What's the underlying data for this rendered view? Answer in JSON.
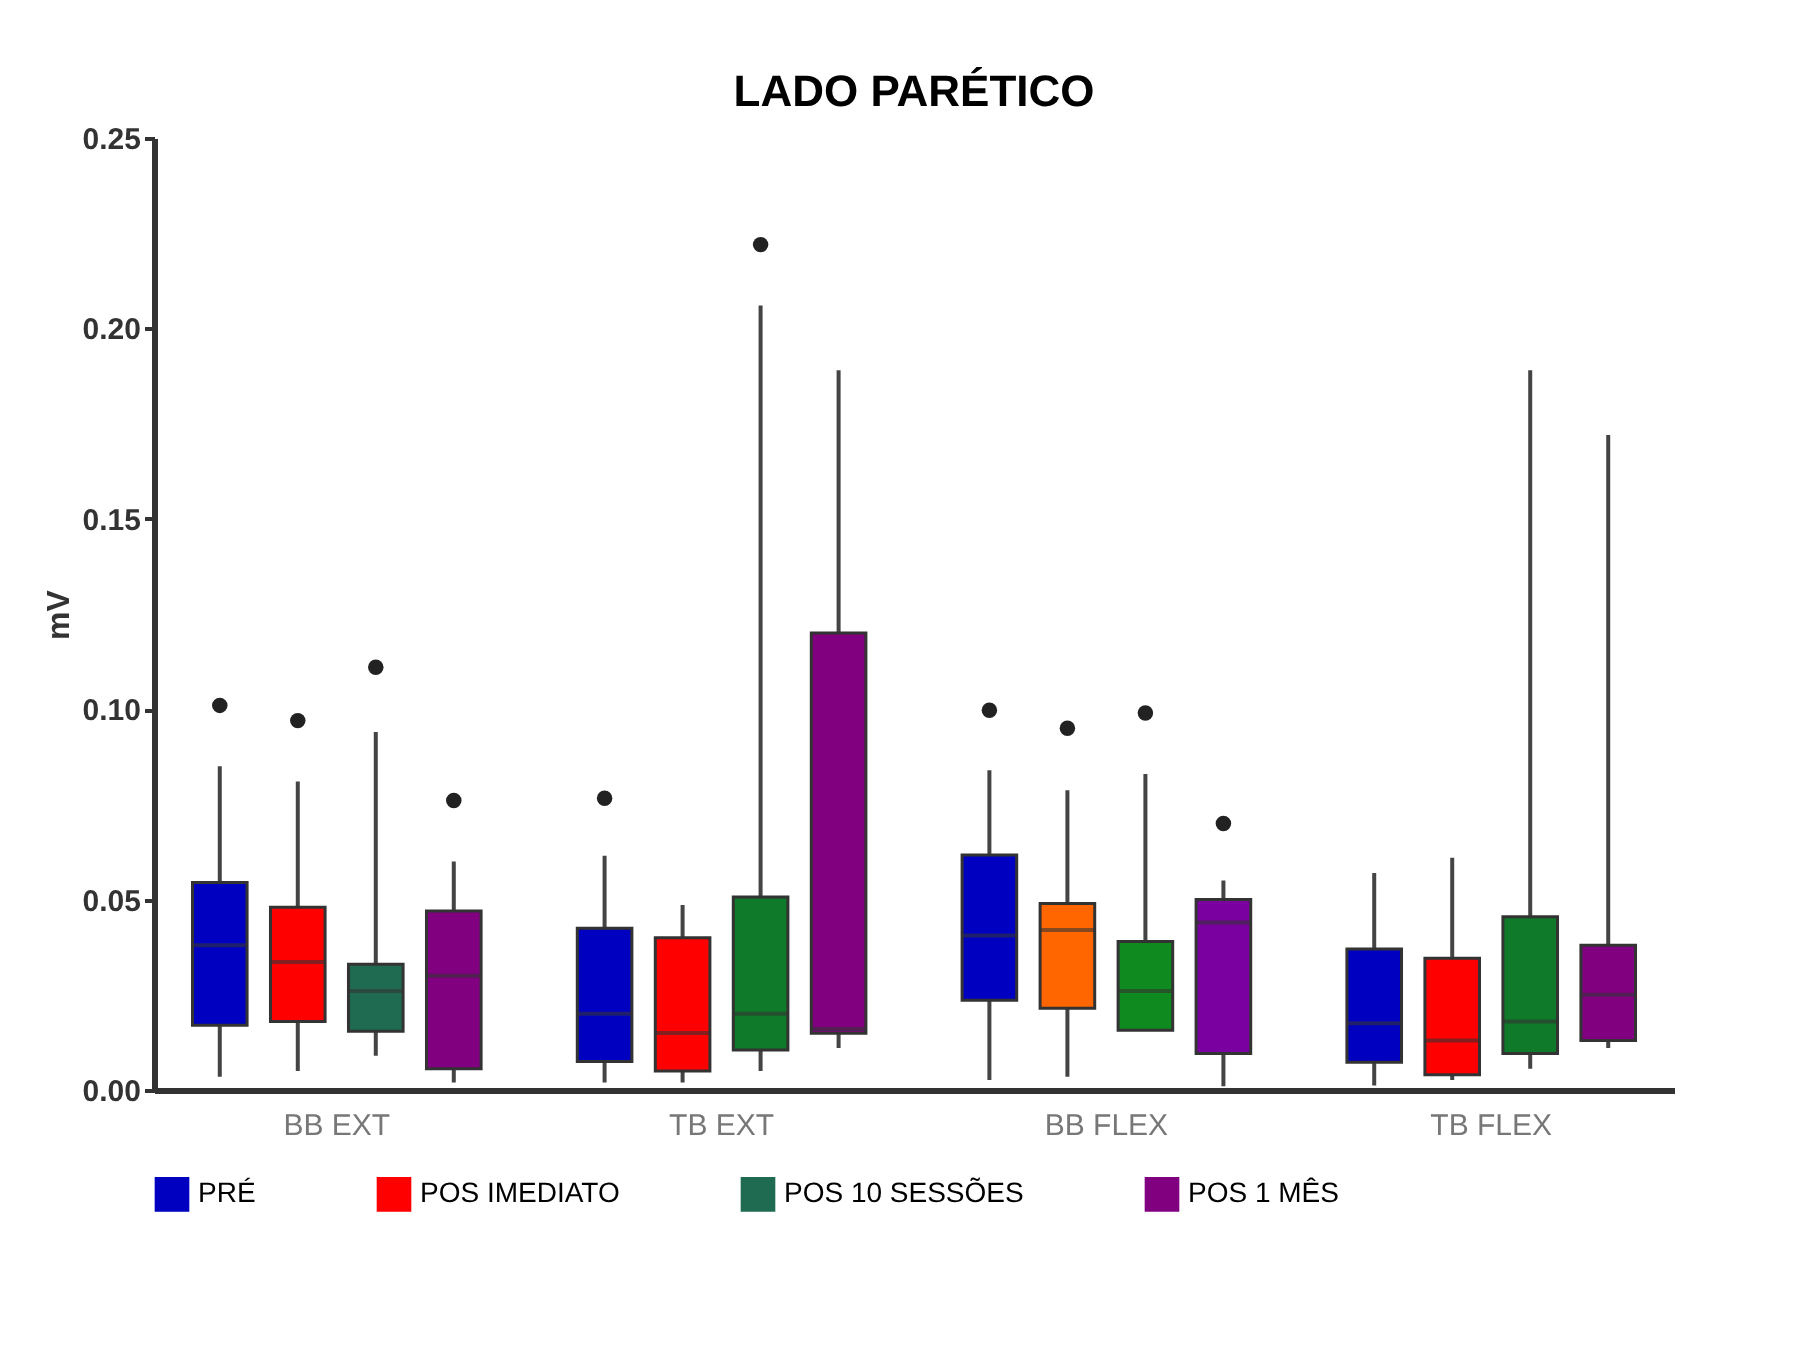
{
  "chart_data": {
    "type": "box",
    "title": "LADO PARÉTICO",
    "ylabel": "mV",
    "categories": [
      "BB EXT",
      "TB EXT",
      "BB FLEX",
      "TB FLEX"
    ],
    "ylim": [
      0,
      0.25
    ],
    "yticks": [
      {
        "value": 0,
        "label": "0.00"
      },
      {
        "value": 0.05,
        "label": "0.05"
      },
      {
        "value": 0.1,
        "label": "0.10"
      },
      {
        "value": 0.15,
        "label": "0.15"
      },
      {
        "value": 0.2,
        "label": "0.20"
      },
      {
        "value": 0.25,
        "label": "0.25"
      }
    ],
    "grid": false,
    "legend": "bottom",
    "series": [
      {
        "name": "PRÉ",
        "color": "#0000c0",
        "colors": [
          "#0000c0",
          "#0000c0",
          "#0000c0",
          "#0000c0"
        ],
        "boxes": [
          {
            "low": 0.0035,
            "q1": 0.017,
            "median": 0.038,
            "q3": 0.0545,
            "high": 0.085,
            "outliers": [
              0.101
            ]
          },
          {
            "low": 0.002,
            "q1": 0.0075,
            "median": 0.02,
            "q3": 0.0425,
            "high": 0.0615,
            "outliers": [
              0.0766
            ]
          },
          {
            "low": 0.0026,
            "q1": 0.0236,
            "median": 0.0406,
            "q3": 0.0617,
            "high": 0.084,
            "outliers": [
              0.0997
            ]
          },
          {
            "low": 0.0012,
            "q1": 0.0073,
            "median": 0.0175,
            "q3": 0.037,
            "high": 0.057
          }
        ]
      },
      {
        "name": "POS IMEDIATO",
        "color": "#ff0000",
        "colors": [
          "#ff0000",
          "#ff0000",
          "#ff6600",
          "#ff0000"
        ],
        "boxes": [
          {
            "low": 0.005,
            "q1": 0.018,
            "median": 0.0336,
            "q3": 0.048,
            "high": 0.081,
            "outliers": [
              0.097
            ]
          },
          {
            "low": 0.002,
            "q1": 0.005,
            "median": 0.015,
            "q3": 0.04,
            "high": 0.0486
          },
          {
            "low": 0.0035,
            "q1": 0.0215,
            "median": 0.042,
            "q3": 0.049,
            "high": 0.0787,
            "outliers": [
              0.095
            ]
          },
          {
            "low": 0.0026,
            "q1": 0.004,
            "median": 0.013,
            "q3": 0.0346,
            "high": 0.061
          }
        ]
      },
      {
        "name": "POS 10 SESSÕES",
        "color": "#1e6b52",
        "colors": [
          "#1e6b52",
          "#0f7a2a",
          "#0f8a1f",
          "#0f7a2a"
        ],
        "boxes": [
          {
            "low": 0.009,
            "q1": 0.0154,
            "median": 0.026,
            "q3": 0.033,
            "high": 0.094,
            "outliers": [
              0.111
            ]
          },
          {
            "low": 0.005,
            "q1": 0.0105,
            "median": 0.02,
            "q3": 0.0507,
            "high": 0.206,
            "outliers": [
              0.222
            ]
          },
          {
            "low": 0.0157,
            "q1": 0.0157,
            "median": 0.026,
            "q3": 0.039,
            "high": 0.083,
            "outliers": [
              0.099
            ]
          },
          {
            "low": 0.0056,
            "q1": 0.0096,
            "median": 0.018,
            "q3": 0.0455,
            "high": 0.189
          }
        ]
      },
      {
        "name": "POS 1 MÊS",
        "color": "#800080",
        "colors": [
          "#800080",
          "#800080",
          "#7a00a0",
          "#800080"
        ],
        "boxes": [
          {
            "low": 0.002,
            "q1": 0.0056,
            "median": 0.03,
            "q3": 0.047,
            "high": 0.06,
            "outliers": [
              0.076
            ]
          },
          {
            "low": 0.011,
            "q1": 0.0149,
            "median": 0.016,
            "q3": 0.12,
            "high": 0.189
          },
          {
            "low": 0.001,
            "q1": 0.0096,
            "median": 0.044,
            "q3": 0.05,
            "high": 0.055,
            "outliers": [
              0.07
            ]
          },
          {
            "low": 0.011,
            "q1": 0.013,
            "median": 0.025,
            "q3": 0.038,
            "high": 0.172
          }
        ]
      }
    ]
  }
}
